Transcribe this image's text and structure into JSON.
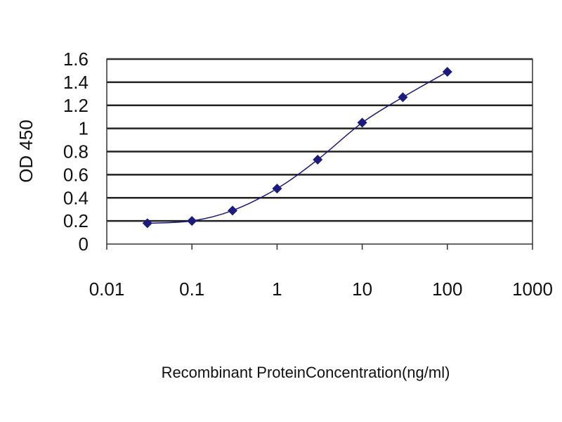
{
  "chart_data": {
    "type": "line",
    "title": "",
    "xlabel": "Recombinant ProteinConcentration(ng/ml)",
    "ylabel": "OD 450",
    "xscale": "log",
    "xlim": [
      0.01,
      1000
    ],
    "ylim": [
      0,
      1.6
    ],
    "xticks": [
      0.01,
      0.1,
      1,
      10,
      100,
      1000
    ],
    "xtick_labels": [
      "0.01",
      "0.1",
      "1",
      "10",
      "100",
      "1000"
    ],
    "yticks": [
      0,
      0.2,
      0.4,
      0.6,
      0.8,
      1,
      1.2,
      1.4,
      1.6
    ],
    "ytick_labels": [
      "0",
      "0.2",
      "0.4",
      "0.6",
      "0.8",
      "1",
      "1.2",
      "1.4",
      "1.6"
    ],
    "grid": "horizontal",
    "legend": "none",
    "series": [
      {
        "x": [
          0.03,
          0.1,
          0.3,
          1,
          3,
          10,
          30,
          100
        ],
        "y": [
          0.18,
          0.2,
          0.29,
          0.48,
          0.73,
          1.05,
          1.27,
          1.49
        ],
        "color": "#1a1a80",
        "marker": "diamond"
      }
    ]
  }
}
